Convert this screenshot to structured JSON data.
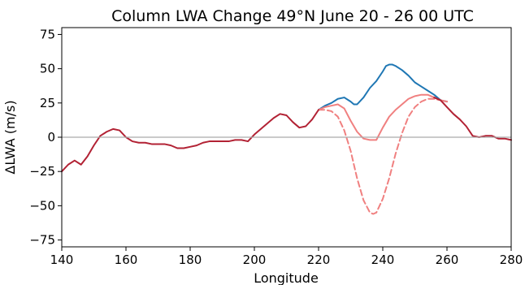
{
  "chart_data": {
    "type": "line",
    "title": "Column LWA Change  49°N  June 20 - 26  00 UTC",
    "xlabel": "Longitude",
    "ylabel": "ΔLWA (m/s)",
    "xlim": [
      140,
      280
    ],
    "ylim": [
      -80,
      80
    ],
    "xticks": [
      140,
      160,
      180,
      200,
      220,
      240,
      260,
      280
    ],
    "yticks": [
      -75,
      -50,
      -25,
      0,
      25,
      50,
      75
    ],
    "ytick_labels": [
      "−75",
      "−50",
      "−25",
      "0",
      "25",
      "50",
      "75"
    ],
    "zero_line": {
      "y": 0,
      "color": "#aaaaaa"
    },
    "grid": false,
    "legend": "none",
    "series": [
      {
        "color": "#1f77b4",
        "style": "solid",
        "x": [
          220,
          222,
          224,
          226,
          228,
          230,
          231,
          232,
          234,
          236,
          238,
          240,
          241,
          242,
          243,
          244,
          246,
          248,
          250,
          252,
          254,
          256,
          258,
          260
        ],
        "y": [
          20,
          23,
          25,
          28,
          29,
          26,
          24,
          24,
          29,
          36,
          41,
          48,
          52,
          53,
          53,
          52,
          49,
          45,
          40,
          37,
          34,
          31,
          27,
          26
        ]
      },
      {
        "color": "#f08080",
        "style": "solid",
        "x": [
          220,
          222,
          224,
          226,
          228,
          230,
          232,
          234,
          236,
          238,
          240,
          242,
          244,
          246,
          248,
          250,
          252,
          254,
          256,
          258,
          260
        ],
        "y": [
          20,
          22,
          23,
          24,
          21,
          12,
          4,
          -1,
          -2,
          -2,
          7,
          15,
          20,
          24,
          28,
          30,
          31,
          31,
          29,
          27,
          26
        ]
      },
      {
        "color": "#f08080",
        "style": "dashed",
        "x": [
          220,
          222,
          224,
          226,
          228,
          230,
          232,
          234,
          236,
          237,
          238,
          240,
          242,
          244,
          246,
          248,
          250,
          252,
          254,
          256,
          258,
          260
        ],
        "y": [
          20,
          20,
          19,
          15,
          5,
          -10,
          -30,
          -46,
          -55,
          -56,
          -55,
          -45,
          -30,
          -12,
          3,
          15,
          22,
          26,
          28,
          28,
          27,
          26
        ]
      },
      {
        "color": "#b22234",
        "style": "solid",
        "x": [
          140,
          142,
          144,
          146,
          148,
          150,
          152,
          154,
          156,
          158,
          160,
          162,
          164,
          166,
          168,
          170,
          172,
          174,
          176,
          178,
          180,
          182,
          184,
          186,
          188,
          190,
          192,
          194,
          196,
          198,
          200,
          202,
          204,
          206,
          208,
          210,
          212,
          214,
          216,
          218,
          220
        ],
        "y": [
          -25,
          -20,
          -17,
          -20,
          -14,
          -6,
          1,
          4,
          6,
          5,
          0,
          -3,
          -4,
          -4,
          -5,
          -5,
          -5,
          -6,
          -8,
          -8,
          -7,
          -6,
          -4,
          -3,
          -3,
          -3,
          -3,
          -2,
          -2,
          -3,
          2,
          6,
          10,
          14,
          17,
          16,
          11,
          7,
          8,
          13,
          20
        ]
      },
      {
        "color": "#b22234",
        "style": "solid",
        "x": [
          256,
          258,
          260,
          262,
          264,
          266,
          268,
          270,
          272,
          274,
          276,
          278,
          280
        ],
        "y": [
          29,
          27,
          22,
          17,
          13,
          8,
          1,
          0,
          1,
          1,
          -1,
          -1,
          -2
        ]
      }
    ]
  }
}
